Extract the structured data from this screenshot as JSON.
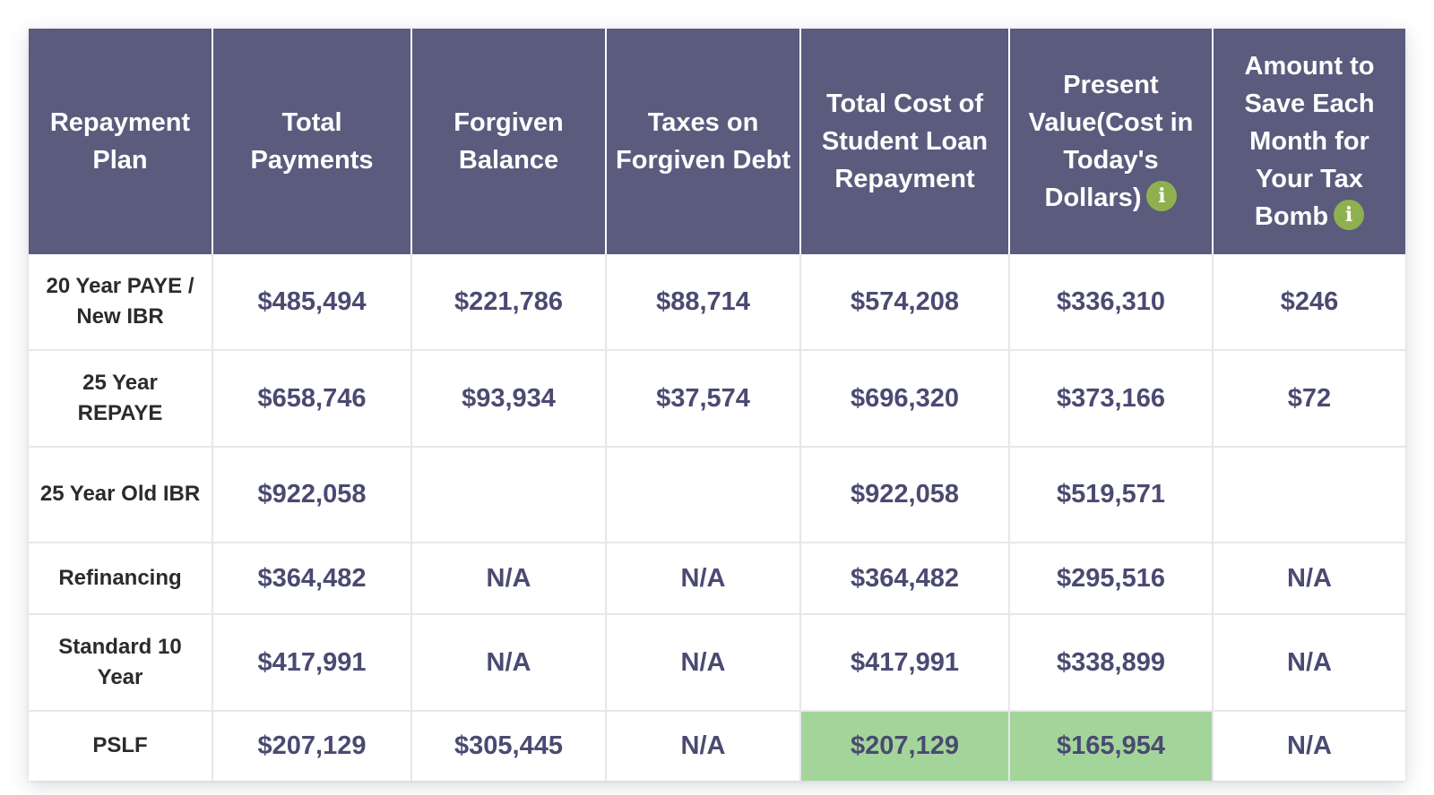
{
  "colors": {
    "header_bg": "#5b5b7e",
    "header_text": "#ffffff",
    "value_text": "#4a4a72",
    "plan_text": "#2b2b2b",
    "highlight": "#a3d59b",
    "info_icon": "#8eb04e"
  },
  "headers": [
    "Repayment Plan",
    "Total Payments",
    "Forgiven Balance",
    "Taxes on Forgiven Debt",
    "Total Cost of Student Loan Repayment",
    "Present Value(Cost in Today's Dollars)",
    "Amount to Save Each Month for Your Tax Bomb"
  ],
  "header_icon": "i",
  "icons": [
    "info-icon"
  ],
  "rows": [
    {
      "plan": "20 Year PAYE / New IBR",
      "total_payments": "$485,494",
      "forgiven_balance": "$221,786",
      "taxes_forgiven": "$88,714",
      "total_cost": "$574,208",
      "present_value": "$336,310",
      "save_monthly": "$246"
    },
    {
      "plan": "25 Year REPAYE",
      "total_payments": "$658,746",
      "forgiven_balance": "$93,934",
      "taxes_forgiven": "$37,574",
      "total_cost": "$696,320",
      "present_value": "$373,166",
      "save_monthly": "$72"
    },
    {
      "plan": "25 Year Old IBR",
      "total_payments": "$922,058",
      "forgiven_balance": "",
      "taxes_forgiven": "",
      "total_cost": "$922,058",
      "present_value": "$519,571",
      "save_monthly": ""
    },
    {
      "plan": "Refinancing",
      "total_payments": "$364,482",
      "forgiven_balance": "N/A",
      "taxes_forgiven": "N/A",
      "total_cost": "$364,482",
      "present_value": "$295,516",
      "save_monthly": "N/A"
    },
    {
      "plan": "Standard 10 Year",
      "total_payments": "$417,991",
      "forgiven_balance": "N/A",
      "taxes_forgiven": "N/A",
      "total_cost": "$417,991",
      "present_value": "$338,899",
      "save_monthly": "N/A"
    },
    {
      "plan": "PSLF",
      "total_payments": "$207,129",
      "forgiven_balance": "$305,445",
      "taxes_forgiven": "N/A",
      "total_cost": "$207,129",
      "present_value": "$165,954",
      "save_monthly": "N/A"
    }
  ]
}
